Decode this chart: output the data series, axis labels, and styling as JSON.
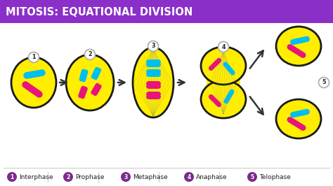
{
  "title": "MITOSIS: EQUATIONAL DIVISION",
  "title_bg": "#8B2FC9",
  "title_color": "#FFFFFF",
  "bg_color": "#FFFFFF",
  "yellow": "#FFEE00",
  "yellow_outline": "#1a1a1a",
  "pink": "#E8147A",
  "blue": "#00BFEF",
  "purple": "#7B2D8B",
  "legend_labels": [
    "Interphase",
    "Prophase",
    "Metaphase",
    "Anaphase",
    "Telophase"
  ],
  "arrow_color": "#333333"
}
